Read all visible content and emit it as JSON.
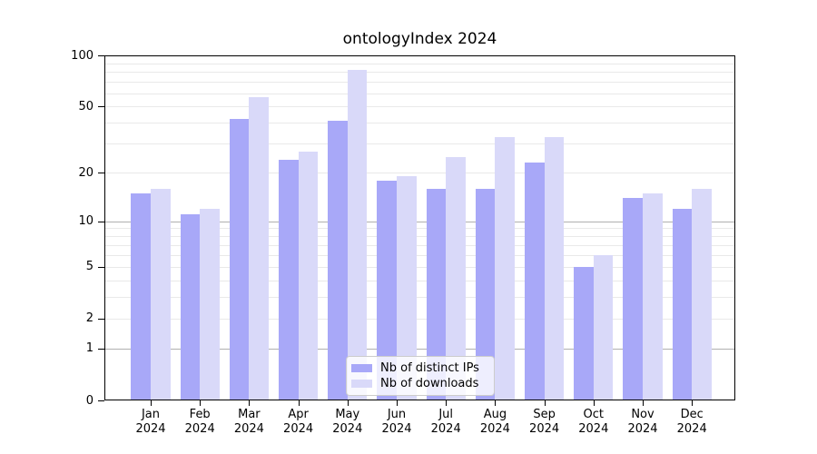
{
  "figure": {
    "background": "#ffffff"
  },
  "chart_data": {
    "type": "bar",
    "title": "ontologyIndex 2024",
    "categories": [
      "Jan",
      "Feb",
      "Mar",
      "Apr",
      "May",
      "Jun",
      "Jul",
      "Aug",
      "Sep",
      "Oct",
      "Nov",
      "Dec"
    ],
    "category_year": "2024",
    "series": [
      {
        "name": "Nb of distinct IPs",
        "color": "#a8a8f8",
        "values": [
          15,
          11,
          42,
          24,
          41,
          18,
          16,
          16,
          23,
          5,
          14,
          12
        ]
      },
      {
        "name": "Nb of downloads",
        "color": "#d9d9f9",
        "values": [
          16,
          12,
          57,
          27,
          82,
          19,
          25,
          33,
          33,
          6,
          15,
          16
        ]
      }
    ],
    "xlabel": "",
    "ylabel": "",
    "ylim": [
      0,
      100
    ],
    "yscale": "log1p",
    "yticks": [
      0,
      1,
      2,
      5,
      10,
      20,
      50,
      100
    ],
    "grid": {
      "major_at": [
        1,
        10
      ],
      "minor_at": [
        2,
        3,
        4,
        5,
        6,
        7,
        8,
        9,
        20,
        30,
        40,
        50,
        60,
        70,
        80,
        90
      ],
      "major_color": "#b0b0b0",
      "minor_color": "#e9e9e9"
    },
    "legend_position": "lower center"
  }
}
